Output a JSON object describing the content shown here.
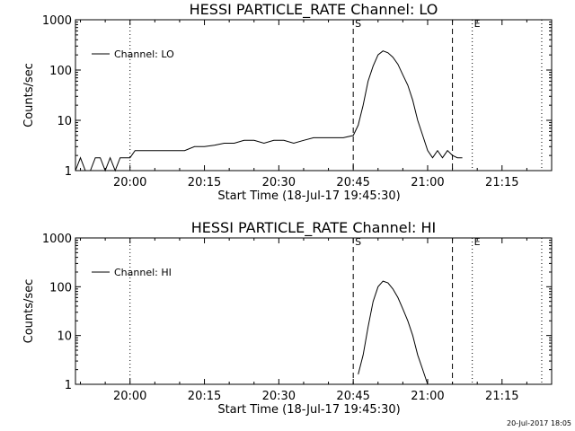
{
  "footer": {
    "timestamp": "20-Jul-2017 18:05"
  },
  "chart_data": [
    {
      "type": "line",
      "title": "HESSI PARTICLE_RATE Channel: LO",
      "xlabel": "Start Time (18-Jul-17 19:45:30)",
      "ylabel": "Counts/sec",
      "y_scale": "log",
      "xlim": [
        "19:49",
        "21:25"
      ],
      "ylim": [
        1,
        1000
      ],
      "x_ticks": [
        "20:00",
        "20:15",
        "20:30",
        "20:45",
        "21:00",
        "21:15"
      ],
      "y_ticks": [
        "1",
        "10",
        "100",
        "1000"
      ],
      "grid": false,
      "legend": {
        "position": "top-left",
        "entries": [
          "Channel: LO"
        ]
      },
      "markers": [
        {
          "label": "S",
          "time": "20:45",
          "style": "dashed"
        },
        {
          "time": "21:05",
          "style": "dashed"
        },
        {
          "label": "E",
          "time": "21:09",
          "style": "dotted"
        },
        {
          "time": "20:00",
          "style": "dotted"
        },
        {
          "time": "21:23",
          "style": "dotted"
        }
      ],
      "series": [
        {
          "name": "Channel: LO",
          "x": [
            "19:49",
            "19:50",
            "19:51",
            "19:52",
            "19:53",
            "19:54",
            "19:55",
            "19:56",
            "19:57",
            "19:58",
            "19:59",
            "20:00",
            "20:01",
            "20:03",
            "20:05",
            "20:07",
            "20:09",
            "20:11",
            "20:13",
            "20:15",
            "20:17",
            "20:19",
            "20:21",
            "20:23",
            "20:25",
            "20:27",
            "20:29",
            "20:31",
            "20:33",
            "20:35",
            "20:37",
            "20:39",
            "20:41",
            "20:43",
            "20:45",
            "20:46",
            "20:47",
            "20:48",
            "20:49",
            "20:50",
            "20:51",
            "20:52",
            "20:53",
            "20:54",
            "20:55",
            "20:56",
            "20:57",
            "20:58",
            "20:59",
            "21:00",
            "21:01",
            "21:02",
            "21:03",
            "21:04",
            "21:05",
            "21:06",
            "21:07"
          ],
          "y": [
            1,
            1.8,
            1,
            1,
            1.8,
            1.8,
            1,
            1.8,
            1,
            1.8,
            1.8,
            1.8,
            2.5,
            2.5,
            2.5,
            2.5,
            2.5,
            2.5,
            3,
            3,
            3.2,
            3.5,
            3.5,
            4,
            4,
            3.5,
            4,
            4,
            3.5,
            4,
            4.5,
            4.5,
            4.5,
            4.5,
            5,
            8,
            20,
            60,
            120,
            200,
            240,
            220,
            180,
            130,
            80,
            50,
            25,
            10,
            5,
            2.5,
            1.8,
            2.5,
            1.8,
            2.5,
            2,
            1.8,
            1.8
          ]
        }
      ]
    },
    {
      "type": "line",
      "title": "HESSI PARTICLE_RATE Channel: HI",
      "xlabel": "Start Time (18-Jul-17 19:45:30)",
      "ylabel": "Counts/sec",
      "y_scale": "log",
      "xlim": [
        "19:49",
        "21:25"
      ],
      "ylim": [
        1,
        1000
      ],
      "x_ticks": [
        "20:00",
        "20:15",
        "20:30",
        "20:45",
        "21:00",
        "21:15"
      ],
      "y_ticks": [
        "1",
        "10",
        "100",
        "1000"
      ],
      "grid": false,
      "legend": {
        "position": "top-left",
        "entries": [
          "Channel: HI"
        ]
      },
      "markers": [
        {
          "label": "S",
          "time": "20:45",
          "style": "dashed"
        },
        {
          "time": "21:05",
          "style": "dashed"
        },
        {
          "label": "E",
          "time": "21:09",
          "style": "dotted"
        },
        {
          "time": "20:00",
          "style": "dotted"
        },
        {
          "time": "21:23",
          "style": "dotted"
        }
      ],
      "series": [
        {
          "name": "Channel: HI",
          "x": [
            "20:46",
            "20:47",
            "20:48",
            "20:49",
            "20:50",
            "20:51",
            "20:52",
            "20:53",
            "20:54",
            "20:55",
            "20:56",
            "20:57",
            "20:58",
            "20:59",
            "21:00"
          ],
          "y": [
            1.6,
            4,
            15,
            50,
            100,
            130,
            120,
            90,
            60,
            35,
            20,
            10,
            4,
            2,
            1
          ]
        }
      ]
    }
  ]
}
